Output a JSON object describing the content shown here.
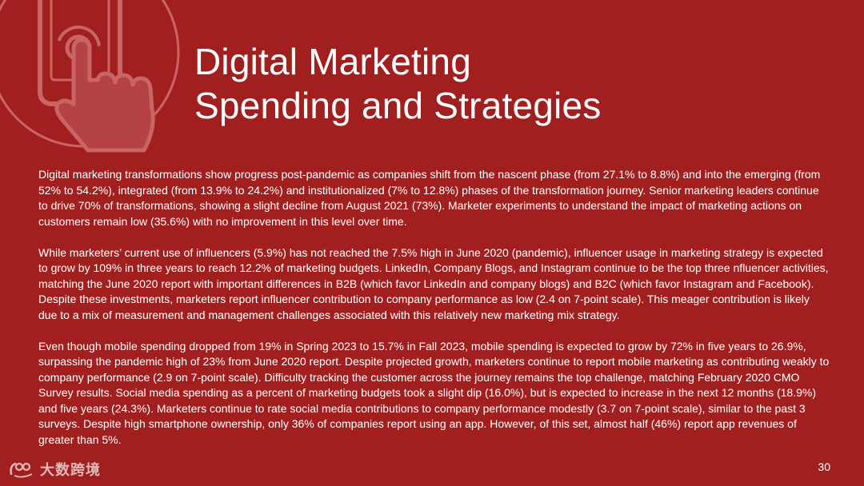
{
  "slide": {
    "title_line1": "Digital Marketing",
    "title_line2": "Spending and Strategies",
    "paragraphs": [
      "Digital marketing transformations show progress post-pandemic as companies shift from the nascent phase (from 27.1% to 8.8%) and into the emerging (from 52% to 54.2%), integrated (from 13.9% to 24.2%) and institutionalized (7% to 12.8%) phases of the transformation journey. Senior marketing leaders continue to drive 70% of transformations, showing a slight decline from August 2021 (73%). Marketer experiments to understand the impact of marketing actions on customers remain low (35.6%) with no improvement in this level over time.",
      "While marketers’ current use of influencers (5.9%) has not reached the 7.5% high in June 2020 (pandemic), influencer usage in marketing strategy is expected to grow by 109% in three years to reach 12.2% of marketing budgets. LinkedIn, Company Blogs, and Instagram continue to be the top three nfluencer activities, matching the June 2020 report with important differences in B2B (which favor LinkedIn and company blogs) and B2C (which favor Instagram and Facebook). Despite these investments, marketers report influencer contribution to company performance as low (2.4 on 7-point scale). This meager contribution is likely due to a mix of measurement and management challenges associated with this relatively new marketing mix strategy.",
      "Even though mobile spending dropped from 19% in Spring 2023 to 15.7% in Fall 2023, mobile spending is expected to grow by 72% in five years to 26.9%, surpassing the pandemic high of 23% from June 2020 report. Despite projected growth, marketers continue to report mobile marketing as contributing weakly to company performance (2.9 on 7-point scale). Difficulty tracking the customer across the journey remains the top challenge, matching February 2020 CMO Survey results. Social media spending as a percent of marketing budgets took a slight dip (16.0%), but is expected to increase in the next 12 months (18.9%) and five years (24.3%). Marketers continue to rate social media contributions to company performance modestly (3.7 on 7-point scale), similar to the past 3 surveys. Despite high smartphone ownership, only 36% of companies report using an app. However, of this set, almost half (46%) report app revenues of greater than 5%."
    ],
    "page_number": "30"
  },
  "watermark": {
    "text": "大数跨境"
  },
  "theme": {
    "background": "#a11f1f",
    "text": "#ffffff",
    "icon_stroke": "#c96565"
  },
  "icons": {
    "hero": "smartphone-tap-icon",
    "watermark": "watermark-logo-icon"
  }
}
